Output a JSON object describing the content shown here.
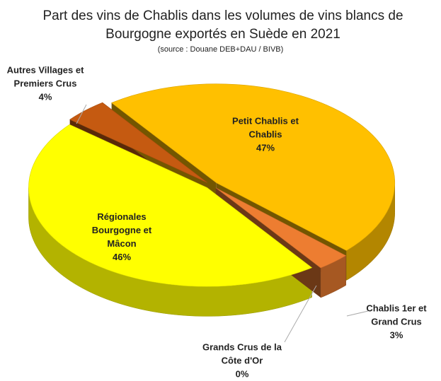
{
  "chart_data": {
    "type": "pie",
    "title": "Part des vins de Chablis dans les volumes de vins blancs de Bourgogne exportés en Suède en 2021",
    "subtitle": "(source : Douane DEB+DAU /  BIVB)",
    "categories": [
      "Petit Chablis et Chablis",
      "Chablis 1er et Grand Crus",
      "Grands Crus de la Côte d'Or",
      "Régionales Bourgogne et Mâcon",
      "Autres Villages et Premiers Crus"
    ],
    "values": [
      47,
      3,
      0,
      46,
      4
    ],
    "value_labels": [
      "47%",
      "3%",
      "0%",
      "46%",
      "4%"
    ],
    "colors": [
      "#ffc000",
      "#ed7d31",
      "#a5a5a5",
      "#ffff00",
      "#c55a11"
    ]
  }
}
